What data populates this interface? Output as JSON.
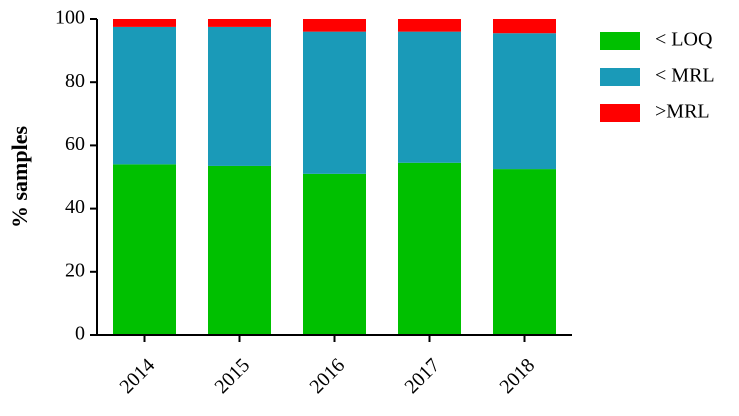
{
  "chart_data": {
    "type": "stacked_bar",
    "y_label": "% samples",
    "categories": [
      "2014",
      "2015",
      "2016",
      "2017",
      "2018"
    ],
    "series": [
      {
        "name": "< LOQ",
        "color": "#00c000",
        "values": [
          54,
          53.5,
          51,
          54.5,
          52.5
        ]
      },
      {
        "name": "< MRL",
        "color": "#1a9ab8",
        "values": [
          43.5,
          44,
          45,
          41.5,
          43
        ]
      },
      {
        "name": ">MRL",
        "color": "#ff0000",
        "values": [
          2.5,
          2.5,
          4,
          4,
          4.5
        ]
      }
    ],
    "ylim": [
      0,
      100
    ],
    "yticks": [
      0,
      20,
      40,
      60,
      80,
      100
    ],
    "legend": "right"
  }
}
